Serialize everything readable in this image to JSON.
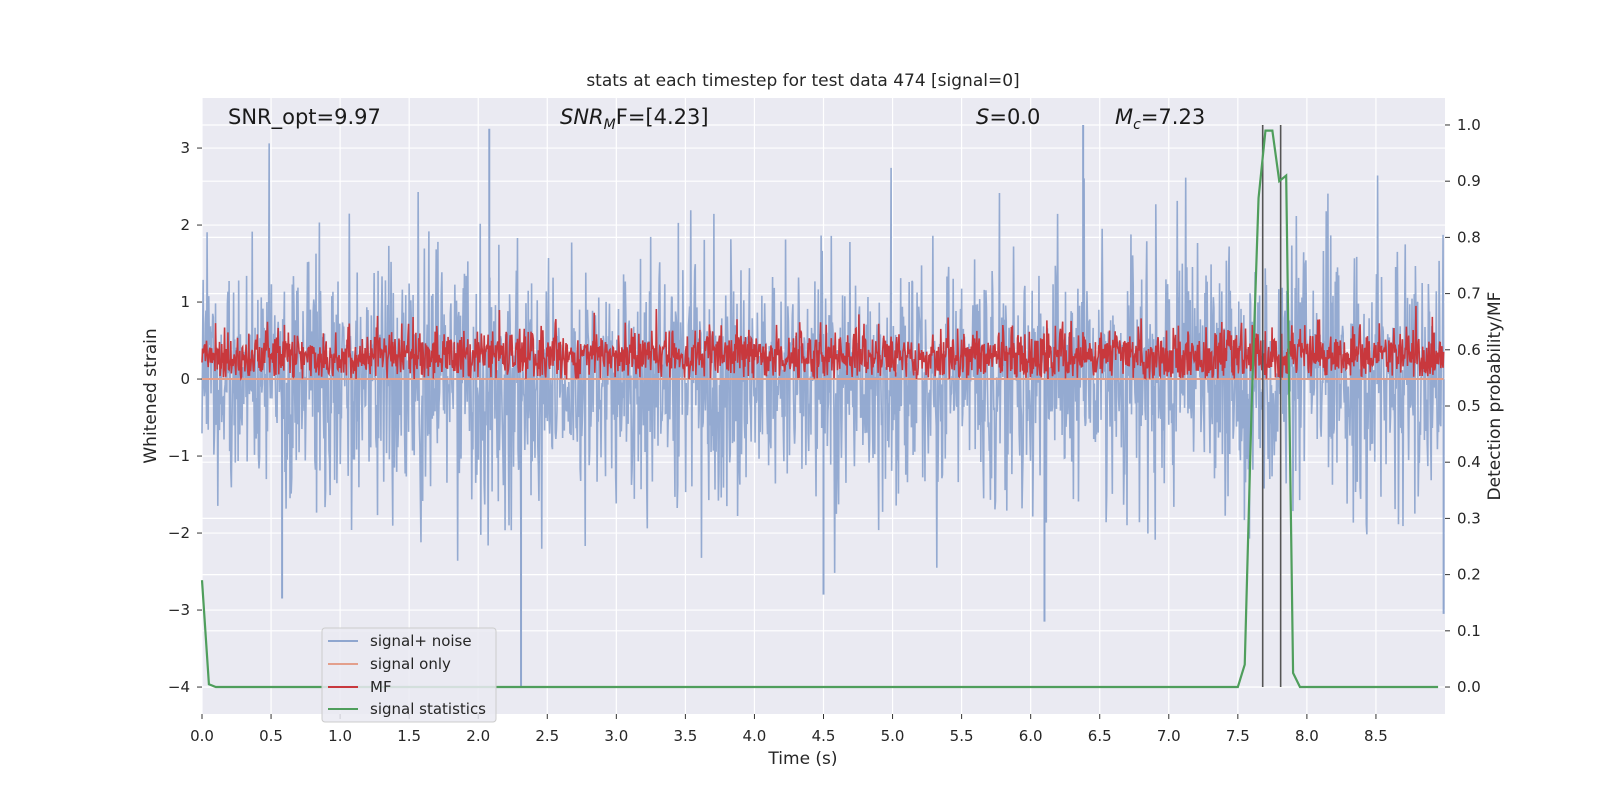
{
  "chart_data": {
    "type": "line",
    "title": "stats at each timestep for test data 474 [signal=0]",
    "xlabel": "Time (s)",
    "ylabel": "Whitened strain",
    "y2label": "Detection probability/MF",
    "xlim": [
      0.0,
      9.0
    ],
    "ylim": [
      -4.35,
      3.65
    ],
    "y2lim": [
      -0.048,
      1.048
    ],
    "xticks": [
      "0.0",
      "0.5",
      "1.0",
      "1.5",
      "2.0",
      "2.5",
      "3.0",
      "3.5",
      "4.0",
      "4.5",
      "5.0",
      "5.5",
      "6.0",
      "6.5",
      "7.0",
      "7.5",
      "8.0",
      "8.5"
    ],
    "yticks": [
      "−4",
      "−3",
      "−2",
      "−1",
      "0",
      "1",
      "2",
      "3"
    ],
    "y2ticks": [
      "0.0",
      "0.1",
      "0.2",
      "0.3",
      "0.4",
      "0.5",
      "0.6",
      "0.7",
      "0.8",
      "0.9",
      "1.0"
    ],
    "grid": true,
    "annotations": {
      "snr_opt": "SNR_opt=9.97",
      "snr_mf_main": "SNR",
      "snr_mf_sub": "M",
      "snr_mf_rest": "F=[4.23]",
      "s_italic": "S",
      "s_rest": "=0.0",
      "mc_italic": "M",
      "mc_sub": "c",
      "mc_rest": "=7.23"
    },
    "legend": {
      "position": "lower-left",
      "entries": [
        "signal+ noise",
        "signal only",
        "MF",
        "signal statistics"
      ]
    },
    "series": [
      {
        "name": "signal+ noise",
        "color": "#8fa6cf",
        "kind": "noise",
        "amplitude_typical": 1.8,
        "min": -4.0,
        "max": 3.3
      },
      {
        "name": "signal only",
        "color": "#e39f8c",
        "kind": "flat",
        "value": 0.0
      },
      {
        "name": "MF",
        "color": "#c8383d",
        "kind": "mf",
        "range": [
          0.0,
          0.95
        ]
      },
      {
        "name": "signal statistics",
        "color": "#4f9e5c",
        "kind": "curve",
        "x": [
          0.0,
          0.05,
          0.1,
          7.45,
          7.5,
          7.55,
          7.6,
          7.65,
          7.7,
          7.75,
          7.8,
          7.85,
          7.9,
          7.95,
          8.0,
          8.95
        ],
        "y": [
          0.19,
          0.005,
          0.0,
          0.0,
          0.0,
          0.04,
          0.5,
          0.87,
          0.99,
          0.99,
          0.9,
          0.91,
          0.025,
          0.0,
          0.0,
          0.0
        ]
      }
    ],
    "vlines": {
      "x": [
        7.68,
        7.81
      ],
      "color": "#555555",
      "y_range": [
        0.0,
        1.0
      ]
    }
  }
}
